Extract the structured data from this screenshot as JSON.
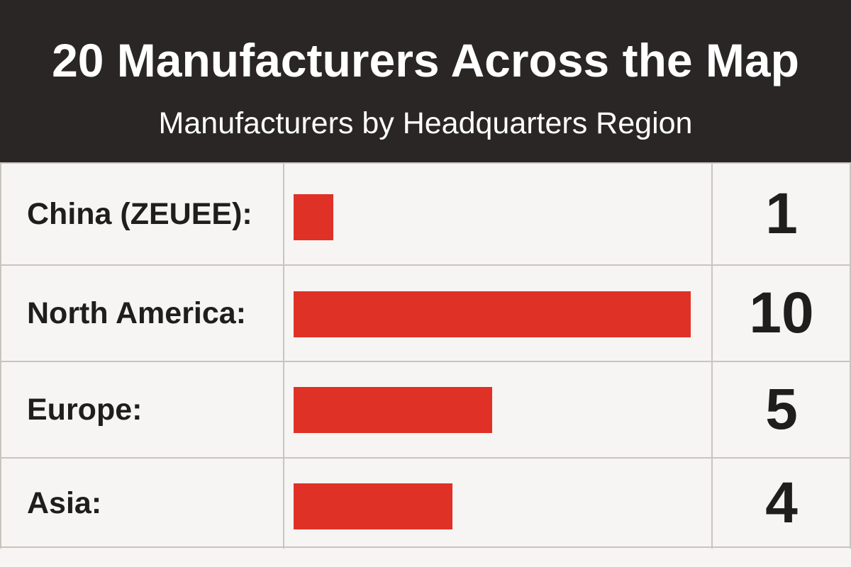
{
  "header": {
    "title": "20 Manufacturers Across the Map",
    "subtitle": "Manufacturers by Headquarters Region"
  },
  "colors": {
    "header_bg": "#2a2626",
    "bar": "#e03127",
    "grid": "#c9c4bf",
    "background": "#f6f5f3"
  },
  "chart_data": {
    "type": "bar",
    "orientation": "horizontal",
    "title": "20 Manufacturers Across the Map",
    "subtitle": "Manufacturers by Headquarters Region",
    "categories": [
      "China (ZEUEE):",
      "North America:",
      "Europe:",
      "Asia:"
    ],
    "values": [
      1,
      10,
      5,
      4
    ],
    "value_labels": [
      "1",
      "10",
      "5",
      "4"
    ],
    "xlim": [
      0,
      10
    ],
    "grid": true,
    "legend": "none"
  }
}
